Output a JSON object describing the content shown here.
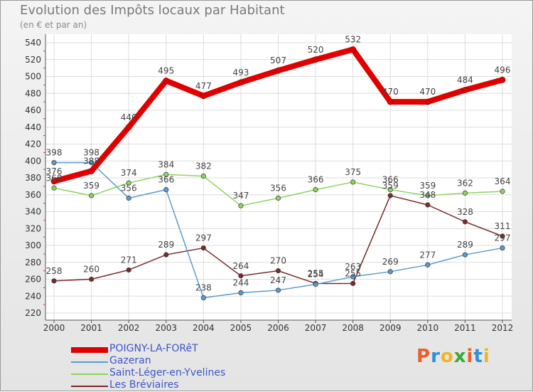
{
  "header": {
    "title": "Evolution des Impôts locaux par Habitant",
    "subtitle": "(en € et par an)"
  },
  "logo": {
    "letters": [
      "P",
      "r",
      "o",
      "x",
      "i",
      "t",
      "i"
    ],
    "colors": [
      "#e8602c",
      "#2f8fd8",
      "#f0b429",
      "#3aa935",
      "#e8602c",
      "#2f8fd8",
      "#f0b429"
    ]
  },
  "chart_data": {
    "type": "line",
    "x": [
      "2000",
      "2001",
      "2002",
      "2003",
      "2004",
      "2005",
      "2006",
      "2007",
      "2008",
      "2009",
      "2010",
      "2011",
      "2012"
    ],
    "ylim": [
      220,
      540
    ],
    "yticks": [
      220,
      240,
      260,
      280,
      300,
      320,
      340,
      360,
      380,
      400,
      420,
      440,
      460,
      480,
      500,
      520,
      540
    ],
    "grid": true,
    "legend_position": "bottom-left",
    "series": [
      {
        "name": "POIGNY-LA-FORêT",
        "color": "#e00000",
        "values": [
          376,
          388,
          440,
          495,
          477,
          493,
          507,
          520,
          532,
          470,
          470,
          484,
          496
        ],
        "labels": [
          "376",
          "388",
          "440",
          "495",
          "477",
          "493",
          "507",
          "520",
          "532",
          "470",
          "470",
          "484",
          "496"
        ]
      },
      {
        "name": "Gazeran",
        "color": "#5b9bd1",
        "values": [
          398,
          398,
          356,
          366,
          238,
          244,
          247,
          254,
          263,
          269,
          277,
          289,
          297
        ],
        "labels": [
          "398",
          "398",
          "356",
          "366",
          "238",
          "244",
          "247",
          "254",
          "263",
          "269",
          "277",
          "289",
          "297"
        ]
      },
      {
        "name": "Saint-Léger-en-Yvelines",
        "color": "#8fd460",
        "values": [
          368,
          359,
          374,
          384,
          382,
          347,
          356,
          366,
          375,
          366,
          359,
          362,
          364
        ],
        "labels": [
          "368",
          "359",
          "374",
          "384",
          "382",
          "347",
          "356",
          "366",
          "375",
          "366",
          "359",
          "362",
          "364"
        ]
      },
      {
        "name": "Les Bréviaires",
        "color": "#7a2a2a",
        "values": [
          258,
          260,
          271,
          289,
          297,
          264,
          270,
          255,
          255,
          359,
          348,
          328,
          311
        ],
        "labels": [
          "258",
          "260",
          "271",
          "289",
          "297",
          "264",
          "270",
          "255",
          "255",
          "359",
          "348",
          "328",
          "311"
        ]
      }
    ]
  }
}
